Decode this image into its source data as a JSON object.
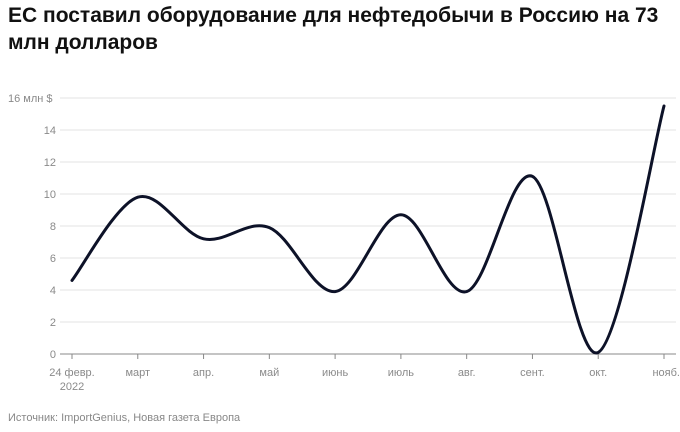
{
  "title": "ЕС поставил оборудование для нефтедобычи в Россию на 73 млн долларов",
  "source": "Источник: ImportGenius, Новая газета Европа",
  "colors": {
    "line": "#0d1228",
    "grid": "#e3e3e3",
    "axis": "#888888",
    "tick_text": "#8a8a8a",
    "title": "#111111"
  },
  "chart_data": {
    "type": "line",
    "title": "ЕС поставил оборудование для нефтедобычи в Россию на 73 млн долларов",
    "xlabel": "",
    "ylabel": "",
    "y_unit_label": "16 млн $",
    "ylim": [
      0,
      16
    ],
    "yticks": [
      0,
      2,
      4,
      6,
      8,
      10,
      12,
      14,
      16
    ],
    "grid": true,
    "categories": [
      "24 февр. 2022",
      "март",
      "апр.",
      "май",
      "июнь",
      "июль",
      "авг.",
      "сент.",
      "окт.",
      "нояб."
    ],
    "x_tick_lines": [
      [
        "24 февр.",
        "2022"
      ],
      [
        "март"
      ],
      [
        "апр."
      ],
      [
        "май"
      ],
      [
        "июнь"
      ],
      [
        "июль"
      ],
      [
        "авг."
      ],
      [
        "сент."
      ],
      [
        "окт."
      ],
      [
        "нояб."
      ]
    ],
    "series": [
      {
        "values": [
          4.6,
          9.8,
          7.2,
          7.9,
          3.9,
          8.7,
          3.9,
          11.1,
          0.1,
          15.5
        ]
      }
    ]
  }
}
